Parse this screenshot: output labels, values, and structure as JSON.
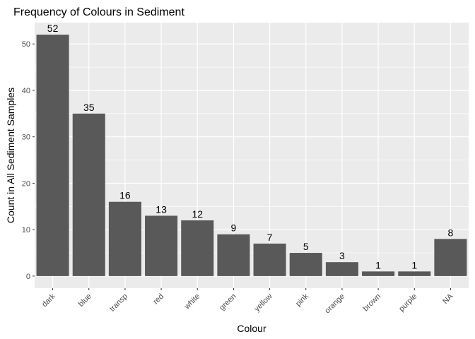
{
  "chart_data": {
    "type": "bar",
    "title": "Frequency of Colours in Sediment",
    "xlabel": "Colour",
    "ylabel": "Count in All Sediment Samples",
    "categories": [
      "dark",
      "blue",
      "transp",
      "red",
      "white",
      "green",
      "yellow",
      "pink",
      "orange",
      "brown",
      "purple",
      "NA"
    ],
    "values": [
      52,
      35,
      16,
      13,
      12,
      9,
      7,
      5,
      3,
      1,
      1,
      8
    ],
    "data_labels": [
      "52",
      "35",
      "16",
      "13",
      "12",
      "9",
      "7",
      "5",
      "3",
      "1",
      "1",
      "8"
    ],
    "yticks": [
      0,
      10,
      20,
      30,
      40,
      50
    ],
    "ytick_labels": [
      "0",
      "10",
      "20",
      "30",
      "40",
      "50"
    ],
    "ylim": [
      -2.6,
      54.6
    ],
    "grid": true,
    "legend": "none",
    "colors": {
      "panel_background": "#ebebeb",
      "grid": "#ffffff",
      "bar_fill": "#595959"
    }
  }
}
